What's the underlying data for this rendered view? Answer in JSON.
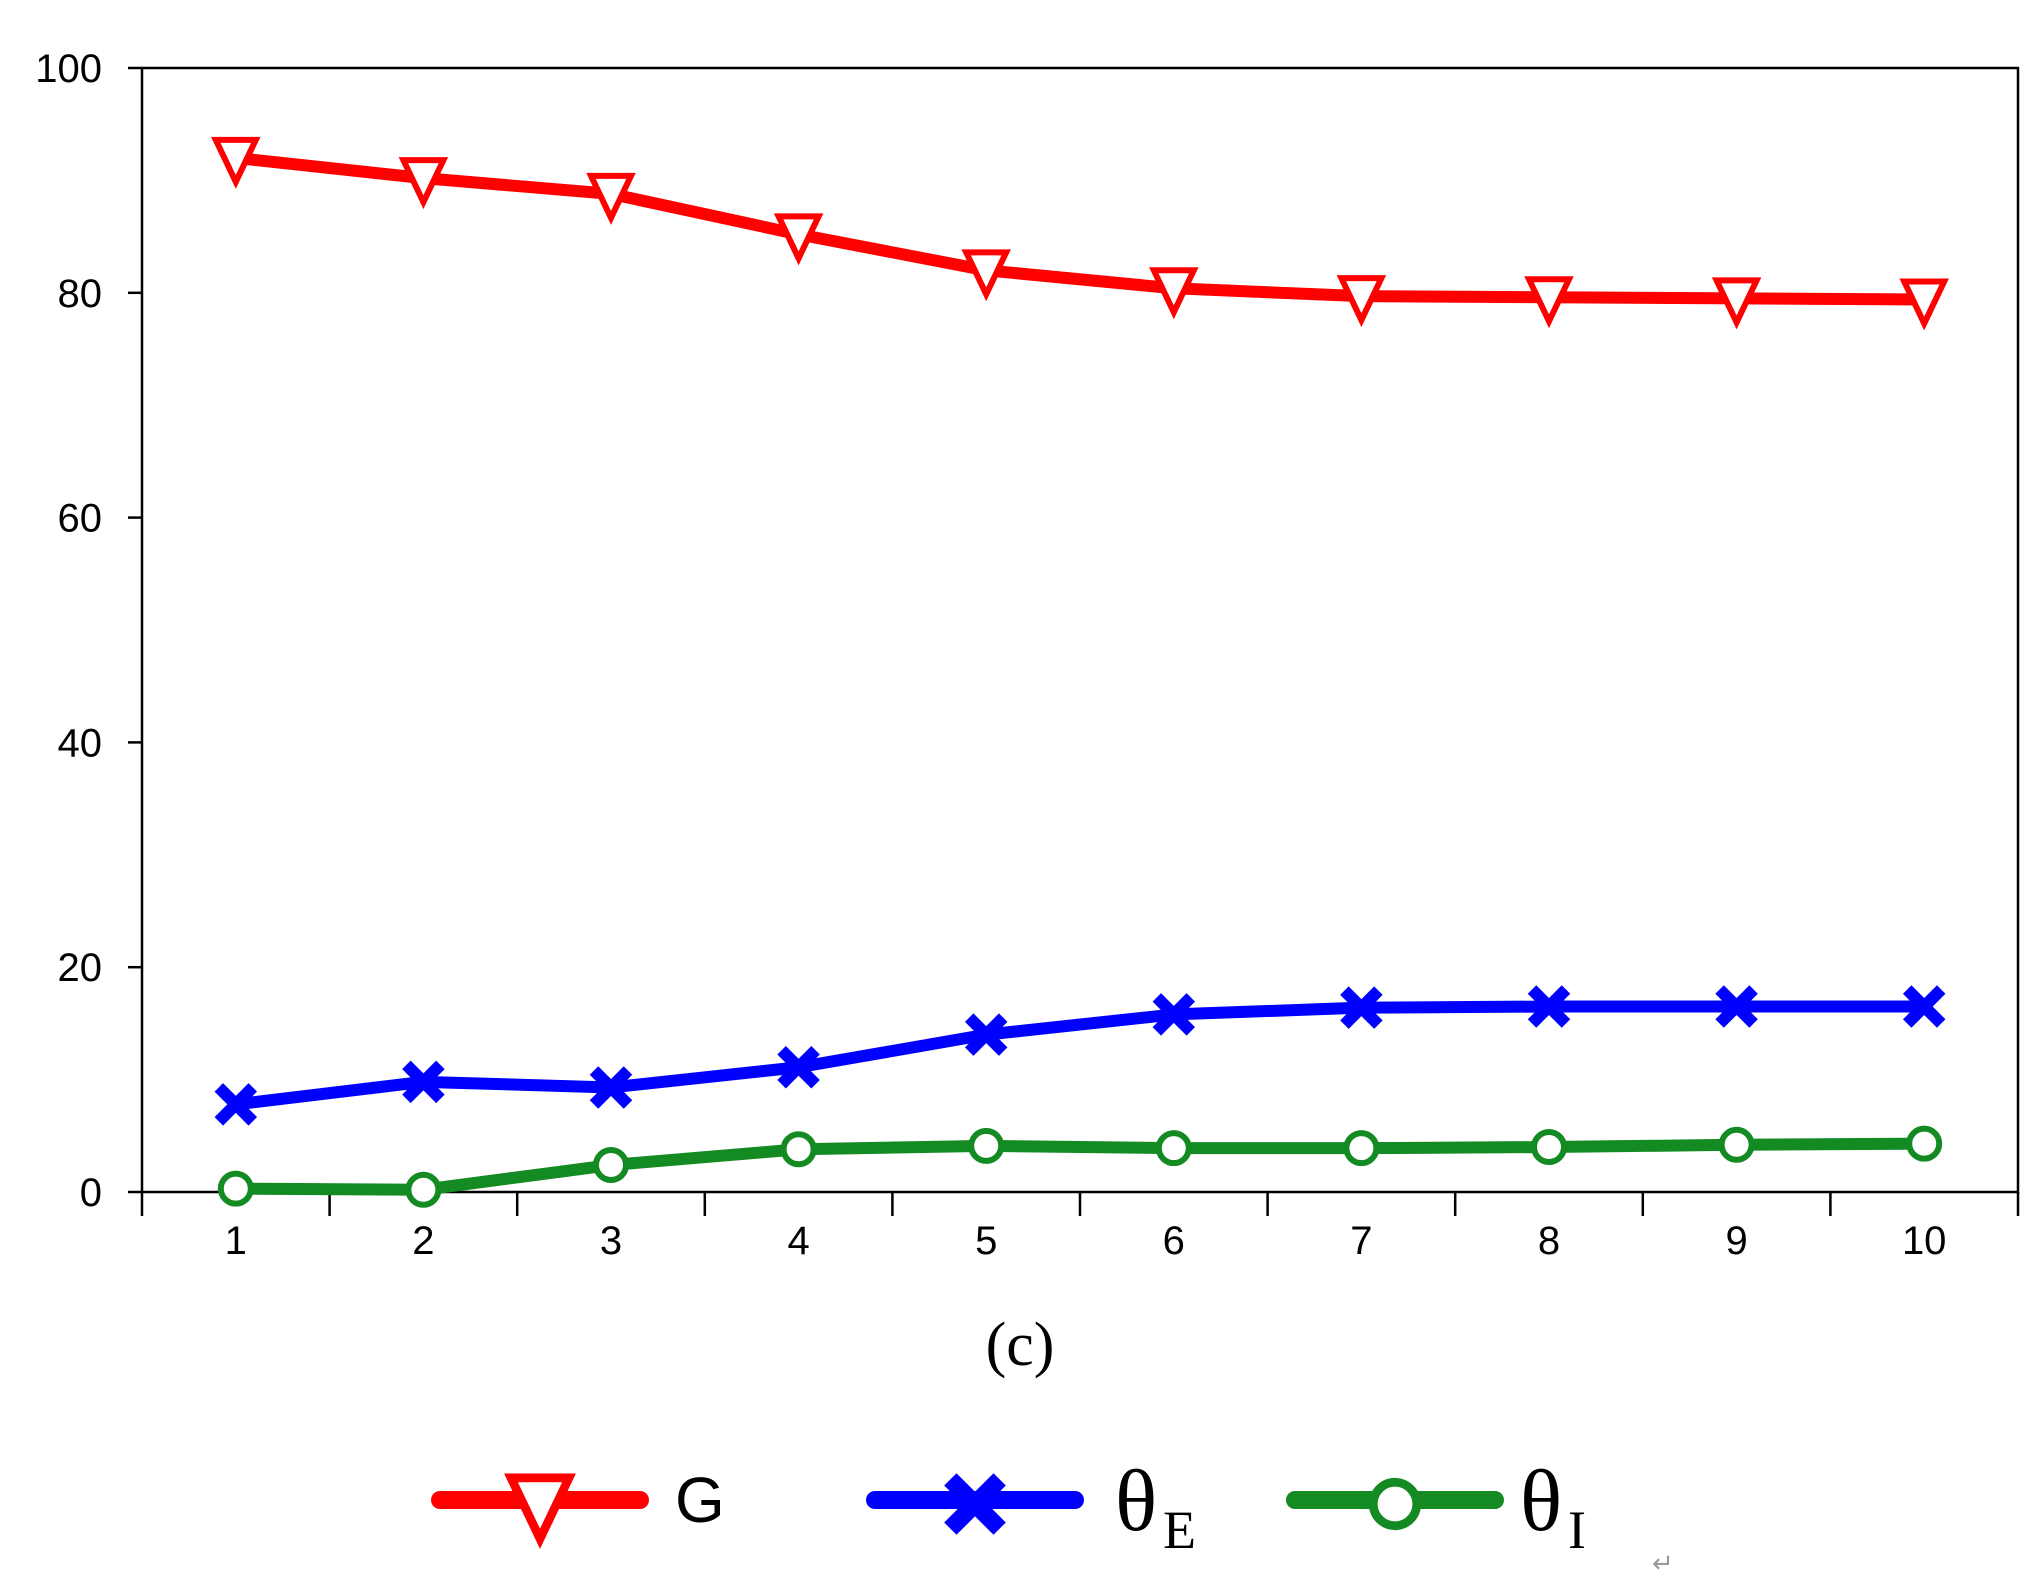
{
  "chart_data": {
    "type": "line",
    "title": "",
    "panel_label": "(c)",
    "xlabel": "",
    "ylabel": "",
    "categories": [
      "1",
      "2",
      "3",
      "4",
      "5",
      "6",
      "7",
      "8",
      "9",
      "10"
    ],
    "x": [
      1,
      2,
      3,
      4,
      5,
      6,
      7,
      8,
      9,
      10
    ],
    "xlim": [
      0.5,
      10.5
    ],
    "ylim": [
      0,
      100
    ],
    "yticks": [
      0,
      20,
      40,
      60,
      80,
      100
    ],
    "grid": false,
    "legend_position": "bottom-center",
    "series": [
      {
        "name": "G",
        "legend_main": "G",
        "legend_sub": "",
        "color": "#ff0000",
        "marker": "triangle-down",
        "values": [
          92.0,
          90.2,
          88.8,
          85.2,
          82.0,
          80.4,
          79.7,
          79.6,
          79.5,
          79.4
        ]
      },
      {
        "name": "θE",
        "legend_main": "θ",
        "legend_sub": "E",
        "color": "#0000ff",
        "marker": "x",
        "values": [
          7.8,
          9.8,
          9.3,
          11.1,
          14.0,
          15.8,
          16.4,
          16.5,
          16.5,
          16.5
        ]
      },
      {
        "name": "θI",
        "legend_main": "θ",
        "legend_sub": "I",
        "color": "#138a22",
        "marker": "circle",
        "values": [
          0.3,
          0.2,
          2.4,
          3.8,
          4.1,
          3.9,
          3.9,
          4.0,
          4.2,
          4.3
        ]
      }
    ]
  },
  "legend_return_mark": "↵"
}
